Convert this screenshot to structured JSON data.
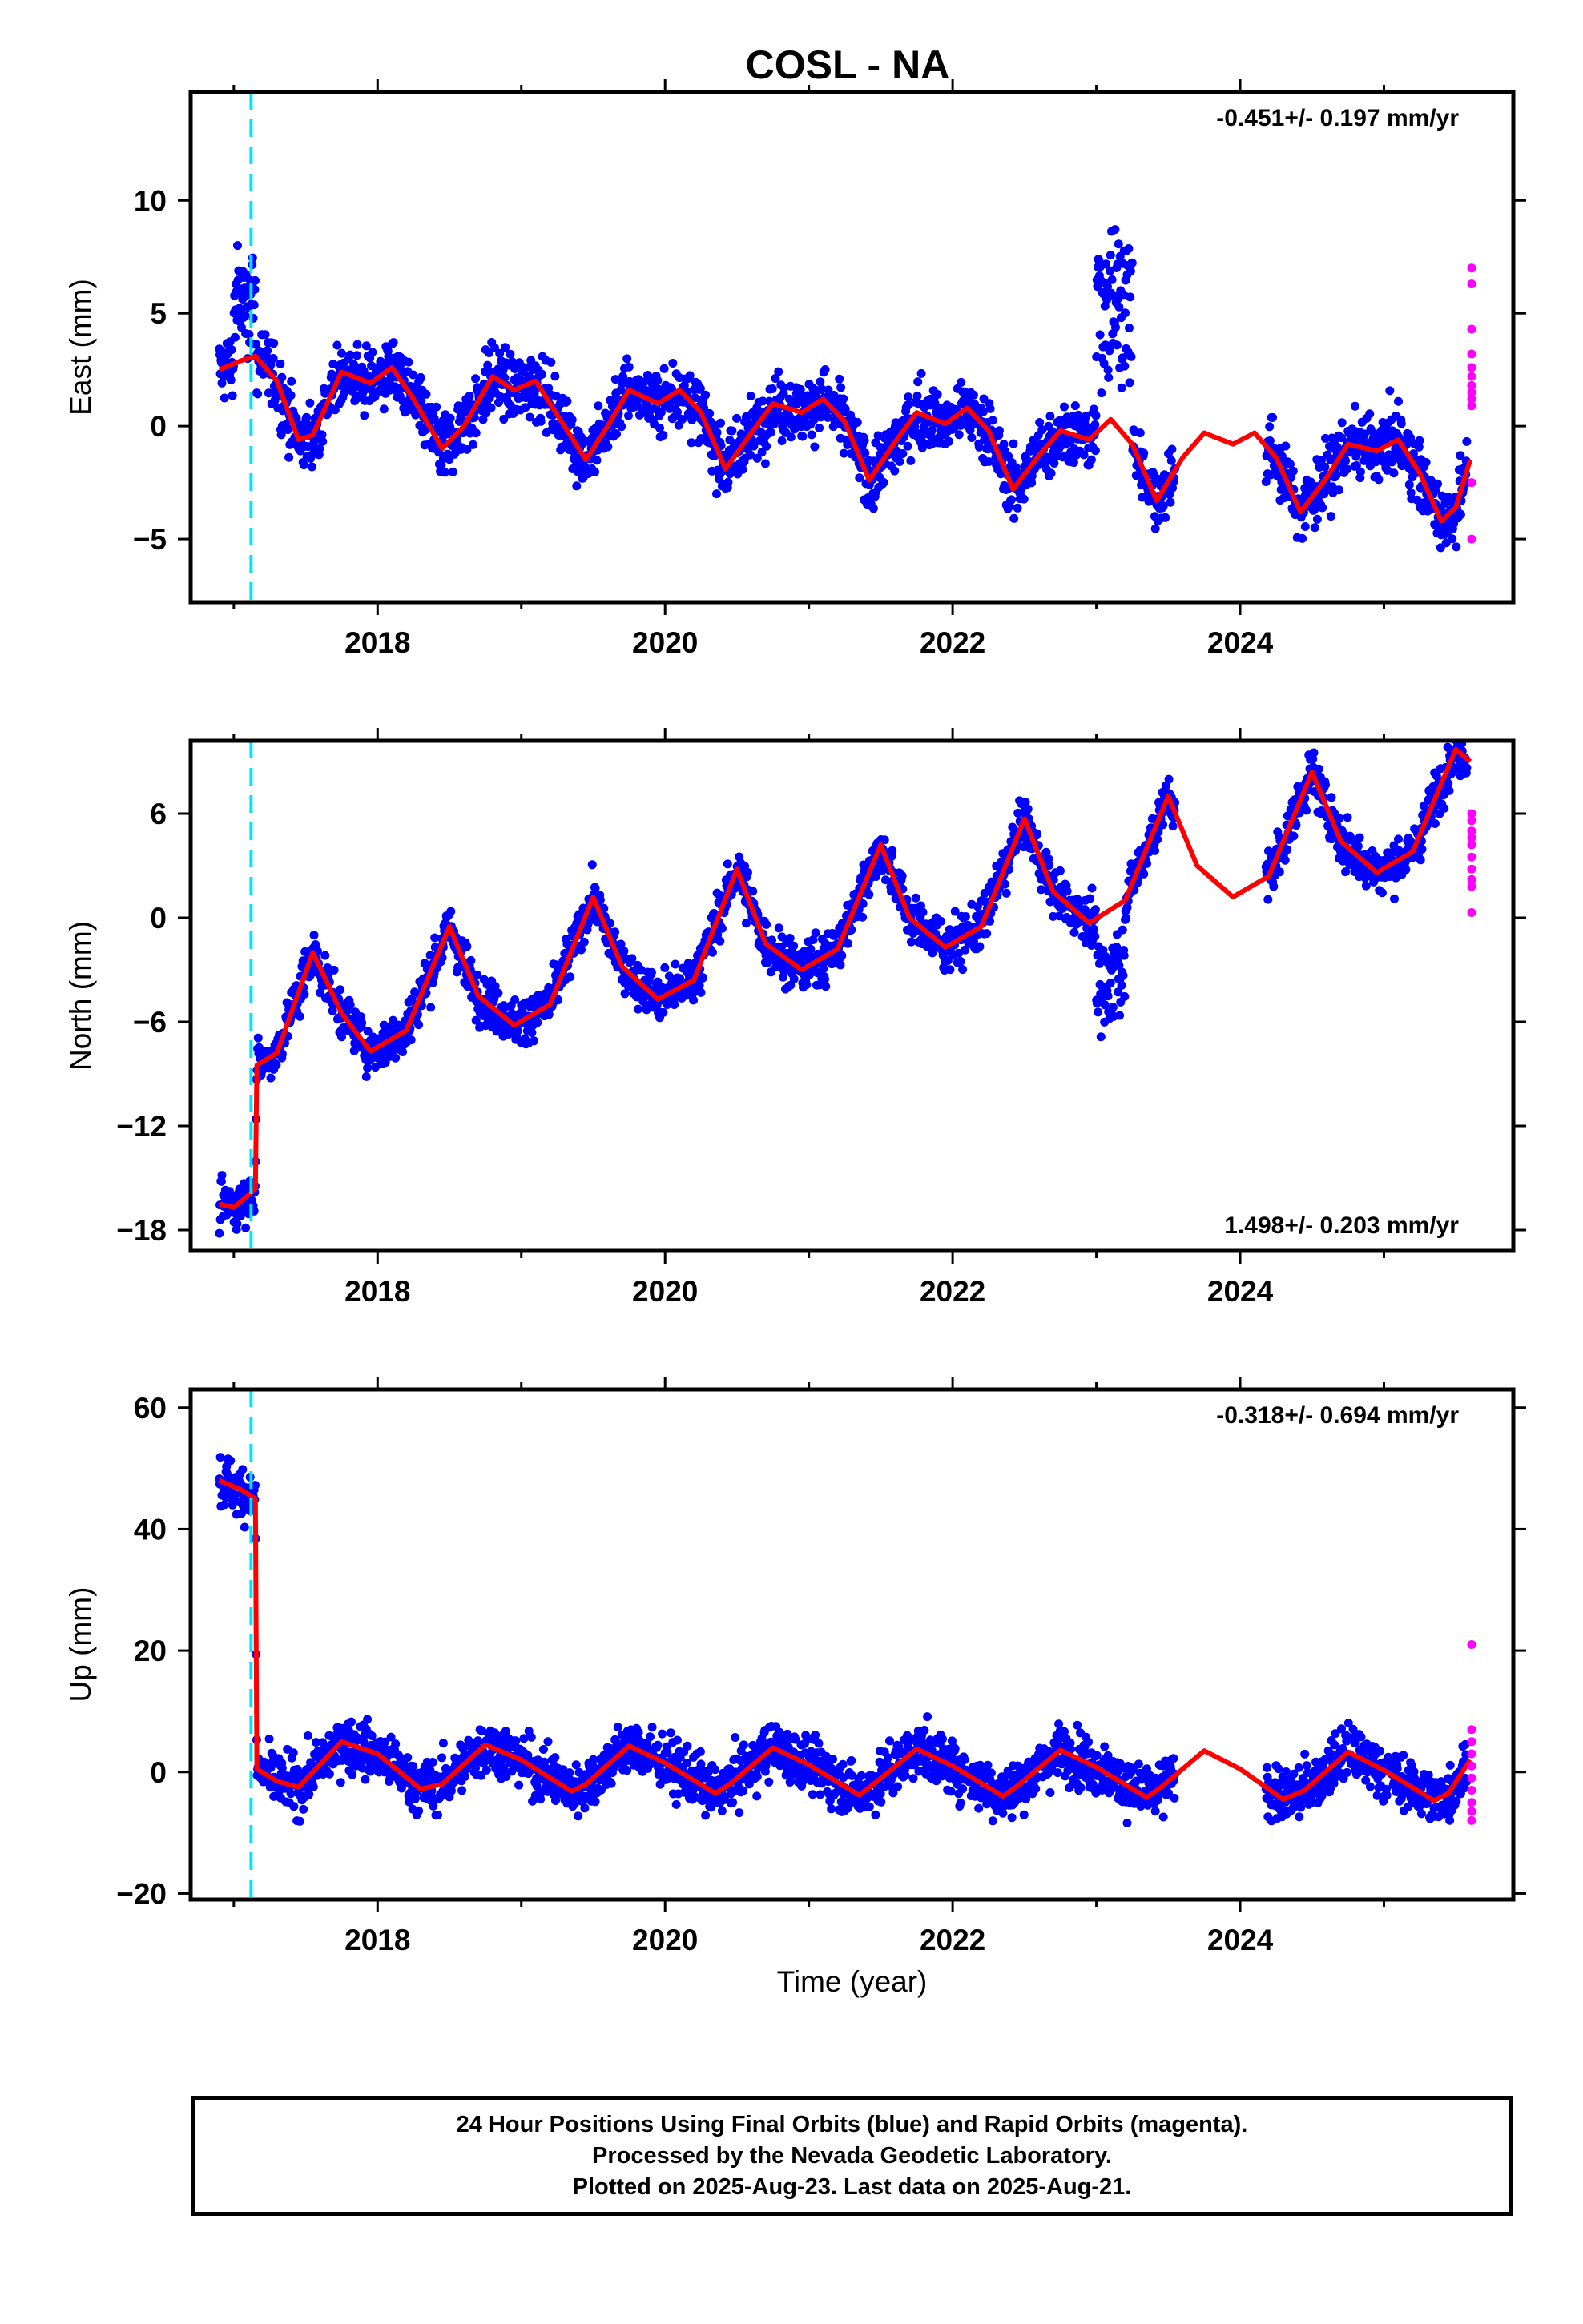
{
  "title": "COSL - NA",
  "colors": {
    "final_orbits": "#0000ff",
    "rapid_orbits": "#ff00ff",
    "model": "#ff0000",
    "event_marker": "#00e5ff"
  },
  "event_marker_year": 2017.12,
  "chart_data": [
    {
      "type": "scatter",
      "panel": "east",
      "ylabel": "East (mm)",
      "xlim": [
        2016.7,
        2025.9
      ],
      "ylim": [
        -7.8,
        14.8
      ],
      "yticks": [
        -5,
        0,
        5,
        10
      ],
      "xticks": [
        2018,
        2020,
        2022,
        2024
      ],
      "xtick_labels": [
        "2018",
        "2020",
        "2022",
        "2024"
      ],
      "rate": "-0.451+/- 0.197 mm/yr",
      "rate_position": "top-right",
      "grid": false,
      "model": {
        "name": "model fit",
        "x": [
          2016.9,
          2017.05,
          2017.15,
          2017.3,
          2017.45,
          2017.55,
          2017.75,
          2017.95,
          2018.1,
          2018.25,
          2018.45,
          2018.6,
          2018.8,
          2018.95,
          2019.1,
          2019.25,
          2019.45,
          2019.6,
          2019.75,
          2019.95,
          2020.1,
          2020.25,
          2020.42,
          2020.6,
          2020.75,
          2020.95,
          2021.1,
          2021.25,
          2021.42,
          2021.6,
          2021.75,
          2021.95,
          2022.1,
          2022.25,
          2022.42,
          2022.6,
          2022.75,
          2022.95,
          2023.1,
          2023.25,
          2023.42,
          2023.6,
          2023.75,
          2023.95,
          2024.1,
          2024.25,
          2024.42,
          2024.6,
          2024.75,
          2024.95,
          2025.1,
          2025.25,
          2025.4,
          2025.5,
          2025.6
        ],
        "y": [
          2.5,
          2.9,
          3.1,
          2.0,
          -0.6,
          -0.4,
          2.4,
          1.9,
          2.6,
          1.2,
          -1.0,
          0.0,
          2.2,
          1.6,
          2.0,
          0.5,
          -1.5,
          0.0,
          1.6,
          1.0,
          1.6,
          0.6,
          -1.9,
          -0.3,
          1.0,
          0.6,
          1.2,
          0.2,
          -2.4,
          -0.7,
          0.6,
          0.1,
          0.8,
          -0.2,
          -2.8,
          -1.3,
          -0.2,
          -0.6,
          0.3,
          -0.8,
          -3.3,
          -1.4,
          -0.3,
          -0.8,
          -0.3,
          -1.4,
          -3.8,
          -2.3,
          -0.8,
          -1.1,
          -0.6,
          -2.1,
          -4.2,
          -3.6,
          -1.5
        ]
      },
      "points": {
        "name": "final orbits",
        "segments": [
          [
            2016.9,
            2023.55
          ],
          [
            2024.18,
            2025.58
          ]
        ],
        "noise": 1.15,
        "events": [
          [
            2017.0,
            2017.15,
            3.0
          ],
          [
            2023.0,
            2023.25,
            6.5
          ]
        ]
      },
      "rapid": {
        "name": "rapid orbits",
        "x": [
          2025.61,
          2025.61,
          2025.61,
          2025.61,
          2025.61,
          2025.61,
          2025.61,
          2025.61,
          2025.61,
          2025.61,
          2025.61,
          2025.61
        ],
        "y": [
          7.0,
          6.3,
          4.3,
          3.2,
          2.6,
          2.2,
          1.8,
          1.5,
          1.2,
          0.9,
          -2.5,
          -5.0
        ]
      }
    },
    {
      "type": "scatter",
      "panel": "north",
      "ylabel": "North (mm)",
      "xlim": [
        2016.7,
        2025.9
      ],
      "ylim": [
        -19.2,
        10.2
      ],
      "yticks": [
        -18,
        -12,
        -6,
        0,
        6
      ],
      "xticks": [
        2018,
        2020,
        2022,
        2024
      ],
      "xtick_labels": [
        "2018",
        "2020",
        "2022",
        "2024"
      ],
      "rate": "1.498+/- 0.203 mm/yr",
      "rate_position": "bottom-right",
      "grid": false,
      "model": {
        "name": "model fit",
        "x": [
          2016.9,
          2017.0,
          2017.1,
          2017.15,
          2017.16,
          2017.3,
          2017.55,
          2017.75,
          2017.95,
          2018.2,
          2018.5,
          2018.7,
          2018.95,
          2019.2,
          2019.5,
          2019.7,
          2019.95,
          2020.2,
          2020.5,
          2020.7,
          2020.95,
          2021.2,
          2021.5,
          2021.7,
          2021.95,
          2022.2,
          2022.5,
          2022.7,
          2022.95,
          2023.2,
          2023.5,
          2023.7,
          2023.95,
          2024.2,
          2024.5,
          2024.7,
          2024.95,
          2025.2,
          2025.5,
          2025.6
        ],
        "y": [
          -16.5,
          -16.7,
          -16.0,
          -15.6,
          -8.5,
          -7.8,
          -2.0,
          -5.5,
          -7.7,
          -6.5,
          -0.5,
          -4.5,
          -6.2,
          -5.0,
          1.2,
          -2.8,
          -4.7,
          -3.6,
          2.8,
          -1.5,
          -3.0,
          -1.8,
          4.2,
          0.0,
          -1.7,
          -0.5,
          5.7,
          1.5,
          -0.3,
          1.0,
          7.0,
          3.0,
          1.2,
          2.4,
          8.4,
          4.4,
          2.6,
          3.8,
          9.7,
          9.0
        ]
      },
      "points": {
        "name": "final orbits",
        "segments": [
          [
            2016.9,
            2023.55
          ],
          [
            2024.18,
            2025.58
          ]
        ],
        "noise": 1.1,
        "events": [
          [
            2023.0,
            2023.2,
            -5.0
          ]
        ]
      },
      "rapid": {
        "name": "rapid orbits",
        "x": [
          2025.61,
          2025.61,
          2025.61,
          2025.61,
          2025.61,
          2025.61,
          2025.61,
          2025.61,
          2025.61,
          2025.61
        ],
        "y": [
          6.0,
          5.6,
          5.0,
          4.6,
          4.2,
          3.5,
          2.8,
          2.2,
          1.8,
          0.3
        ]
      }
    },
    {
      "type": "scatter",
      "panel": "up",
      "ylabel": "Up (mm)",
      "xlim": [
        2016.7,
        2025.9
      ],
      "ylim": [
        -21,
        63
      ],
      "yticks": [
        -20,
        0,
        20,
        40,
        60
      ],
      "xticks": [
        2018,
        2020,
        2022,
        2024
      ],
      "xtick_labels": [
        "2018",
        "2020",
        "2022",
        "2024"
      ],
      "xlabel": "Time (year)",
      "rate": "-0.318+/- 0.694 mm/yr",
      "rate_position": "top-right",
      "grid": false,
      "model": {
        "name": "model fit",
        "x": [
          2016.9,
          2017.05,
          2017.15,
          2017.16,
          2017.3,
          2017.45,
          2017.75,
          2018.0,
          2018.3,
          2018.45,
          2018.75,
          2019.0,
          2019.35,
          2019.45,
          2019.75,
          2020.0,
          2020.35,
          2020.45,
          2020.75,
          2021.0,
          2021.35,
          2021.45,
          2021.75,
          2022.0,
          2022.35,
          2022.45,
          2022.75,
          2023.0,
          2023.35,
          2023.45,
          2023.75,
          2024.0,
          2024.3,
          2024.45,
          2024.75,
          2025.0,
          2025.35,
          2025.45,
          2025.6
        ],
        "y": [
          48.0,
          46.5,
          45.0,
          0.5,
          -1.5,
          -2.5,
          5.0,
          3.0,
          -2.8,
          -2.0,
          4.5,
          2.0,
          -3.2,
          -2.0,
          4.3,
          1.5,
          -3.5,
          -2.0,
          4.0,
          1.2,
          -3.8,
          -2.0,
          3.8,
          1.0,
          -4.0,
          -2.3,
          3.6,
          0.8,
          -4.2,
          -2.5,
          3.5,
          0.5,
          -4.5,
          -3.0,
          3.3,
          0.3,
          -4.7,
          -3.5,
          2.0
        ]
      },
      "points": {
        "name": "final orbits",
        "segments": [
          [
            2016.9,
            2023.55
          ],
          [
            2024.18,
            2025.58
          ]
        ],
        "noise": 3.6,
        "events": []
      },
      "rapid": {
        "name": "rapid orbits",
        "x": [
          2025.61,
          2025.61,
          2025.61,
          2025.61,
          2025.61,
          2025.61,
          2025.61,
          2025.61,
          2025.61,
          2025.61
        ],
        "y": [
          21.0,
          7.0,
          5.0,
          3.0,
          1.0,
          -1.0,
          -3.0,
          -5.0,
          -6.5,
          -8.0
        ]
      }
    }
  ],
  "footer": {
    "line1": "24 Hour Positions Using Final Orbits (blue) and Rapid Orbits (magenta).",
    "line2": "Processed by the Nevada Geodetic Laboratory.",
    "line3": "Plotted on 2025-Aug-23. Last data on 2025-Aug-21."
  }
}
